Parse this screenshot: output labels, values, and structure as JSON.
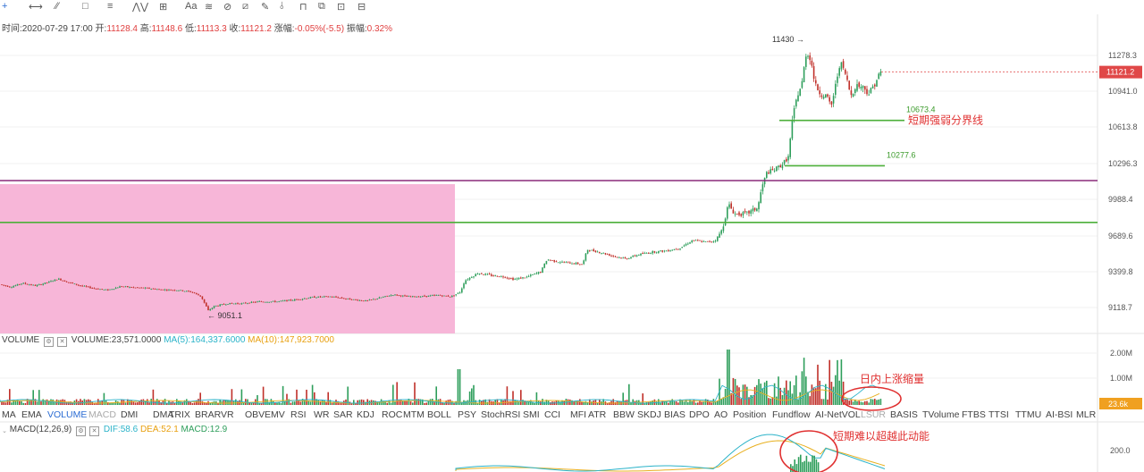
{
  "toolbar": {
    "tools": [
      {
        "icon": "crosshair-icon",
        "glyph": "+"
      },
      {
        "icon": "horizontal-line-icon",
        "glyph": "⟷"
      },
      {
        "icon": "trend-line-icon",
        "glyph": "⁄⁄"
      },
      {
        "icon": "rectangle-icon",
        "glyph": "□"
      },
      {
        "icon": "parallel-lines-icon",
        "glyph": "≡"
      },
      {
        "icon": "wave-icon",
        "glyph": "⋀⋁"
      },
      {
        "icon": "measure-icon",
        "glyph": "⊞"
      },
      {
        "icon": "text-icon",
        "glyph": "Aa"
      },
      {
        "icon": "fibonacci-icon",
        "glyph": "≋"
      },
      {
        "icon": "pattern-icon",
        "glyph": "⊘"
      },
      {
        "icon": "ruler-icon",
        "glyph": "⧄"
      },
      {
        "icon": "pencil-icon",
        "glyph": "✎"
      },
      {
        "icon": "magnet-icon",
        "glyph": "⫰"
      },
      {
        "icon": "lock-icon",
        "glyph": "⊓"
      },
      {
        "icon": "copy-icon",
        "glyph": "⧉"
      },
      {
        "icon": "edit-layer-icon",
        "glyph": "⊡"
      },
      {
        "icon": "trash-icon",
        "glyph": "⊟"
      }
    ]
  },
  "ohlc": {
    "time_label": "时间:",
    "time": "2020-07-29 17:00",
    "open_label": "开:",
    "open": "11128.4",
    "high_label": "高:",
    "high": "11148.6",
    "low_label": "低:",
    "low": "11113.3",
    "close_label": "收:",
    "close": "11121.2",
    "change_label": "涨幅:",
    "change": "-0.05%(-5.5)",
    "amp_label": "振幅:",
    "amp": "0.32%"
  },
  "volume_header": {
    "name": "VOLUME",
    "value_text": "VOLUME:23,571.0000",
    "ma5_text": "MA(5):164,337.6000",
    "ma10_text": "MA(10):147,923.7000"
  },
  "macd_header": {
    "name": "MACD(12,26,9)",
    "dif_text": "DIF:58.6",
    "dea_text": "DEA:52.1",
    "macd_text": "MACD:12.9"
  },
  "indicator_tabs": [
    {
      "label": "MA",
      "state": "normal"
    },
    {
      "label": "EMA",
      "state": "normal"
    },
    {
      "label": "VOLUME",
      "state": "active"
    },
    {
      "label": "MACD",
      "state": "dim"
    },
    {
      "label": "DMI",
      "state": "normal"
    },
    {
      "label": "DMA",
      "state": "normal"
    },
    {
      "label": "TRIX",
      "state": "normal"
    },
    {
      "label": "BRAR",
      "state": "normal"
    },
    {
      "label": "VR",
      "state": "normal"
    },
    {
      "label": "OBV",
      "state": "normal"
    },
    {
      "label": "EMV",
      "state": "normal"
    },
    {
      "label": "RSI",
      "state": "normal"
    },
    {
      "label": "WR",
      "state": "normal"
    },
    {
      "label": "SAR",
      "state": "normal"
    },
    {
      "label": "KDJ",
      "state": "normal"
    },
    {
      "label": "ROC",
      "state": "normal"
    },
    {
      "label": "MTM",
      "state": "normal"
    },
    {
      "label": "BOLL",
      "state": "normal"
    },
    {
      "label": "PSY",
      "state": "normal"
    },
    {
      "label": "StochRSI",
      "state": "normal"
    },
    {
      "label": "SMI",
      "state": "normal"
    },
    {
      "label": "CCI",
      "state": "normal"
    },
    {
      "label": "MFI",
      "state": "normal"
    },
    {
      "label": "ATR",
      "state": "normal"
    },
    {
      "label": "BBW",
      "state": "normal"
    },
    {
      "label": "SKDJ",
      "state": "normal"
    },
    {
      "label": "BIAS",
      "state": "normal"
    },
    {
      "label": "DPO",
      "state": "normal"
    },
    {
      "label": "AO",
      "state": "normal"
    },
    {
      "label": "Position",
      "state": "normal"
    },
    {
      "label": "Fundflow",
      "state": "normal"
    },
    {
      "label": "AI-NetVOL",
      "state": "normal"
    },
    {
      "label": "LSUR",
      "state": "dim"
    },
    {
      "label": "BASIS",
      "state": "normal"
    },
    {
      "label": "TVolume",
      "state": "normal"
    },
    {
      "label": "FTBS",
      "state": "normal"
    },
    {
      "label": "TTSI",
      "state": "normal"
    },
    {
      "label": "TTMU",
      "state": "normal"
    },
    {
      "label": "AI-BSI",
      "state": "normal"
    },
    {
      "label": "MLR",
      "state": "normal"
    }
  ],
  "colors": {
    "up": "#2e9e5b",
    "down": "#c0302a",
    "highlight_zone": "#f7b6d8",
    "resistance_line": "#8a2a7a",
    "support_line": "#4caf3a",
    "annotation": "#e03030",
    "ma5": "#2bb3c9",
    "ma10": "#e8b020",
    "price_tag": "#e04848"
  },
  "chart_data": {
    "type": "candlestick",
    "price_axis": {
      "ticks": [
        "11278.3",
        "10941.0",
        "10613.8",
        "10296.3",
        "9988.4",
        "9689.6",
        "9399.8",
        "9118.7"
      ],
      "ylim": [
        8960,
        11500
      ],
      "current_price": "11121.2"
    },
    "key_points": [
      {
        "label": "11430",
        "value": 11430,
        "kind": "high"
      },
      {
        "label": "9051.1",
        "value": 9051.1,
        "kind": "low"
      }
    ],
    "levels": [
      {
        "label": "10673.4",
        "value": 10673.4,
        "note": "短期强弱分界线"
      },
      {
        "label": "10277.6",
        "value": 10277.6,
        "note": ""
      }
    ],
    "horizontal_lines": [
      {
        "value": 10150,
        "color_key": "resistance_line"
      },
      {
        "value": 9800,
        "color_key": "support_line"
      }
    ],
    "close_path": [
      [
        0,
        9300
      ],
      [
        12,
        9280
      ],
      [
        25,
        9310
      ],
      [
        40,
        9290
      ],
      [
        55,
        9320
      ],
      [
        65,
        9345
      ],
      [
        75,
        9320
      ],
      [
        90,
        9290
      ],
      [
        105,
        9270
      ],
      [
        120,
        9255
      ],
      [
        135,
        9285
      ],
      [
        150,
        9275
      ],
      [
        165,
        9270
      ],
      [
        180,
        9260
      ],
      [
        200,
        9255
      ],
      [
        215,
        9240
      ],
      [
        225,
        9205
      ],
      [
        233,
        9095
      ],
      [
        240,
        9130
      ],
      [
        255,
        9150
      ],
      [
        270,
        9150
      ],
      [
        290,
        9165
      ],
      [
        310,
        9165
      ],
      [
        330,
        9180
      ],
      [
        350,
        9200
      ],
      [
        370,
        9205
      ],
      [
        390,
        9185
      ],
      [
        410,
        9170
      ],
      [
        425,
        9195
      ],
      [
        440,
        9220
      ],
      [
        455,
        9205
      ],
      [
        470,
        9205
      ],
      [
        490,
        9215
      ],
      [
        505,
        9205
      ],
      [
        515,
        9240
      ],
      [
        520,
        9330
      ],
      [
        535,
        9390
      ],
      [
        550,
        9370
      ],
      [
        565,
        9360
      ],
      [
        575,
        9340
      ],
      [
        590,
        9360
      ],
      [
        605,
        9400
      ],
      [
        612,
        9500
      ],
      [
        625,
        9480
      ],
      [
        640,
        9470
      ],
      [
        652,
        9460
      ],
      [
        657,
        9580
      ],
      [
        670,
        9560
      ],
      [
        685,
        9530
      ],
      [
        700,
        9505
      ],
      [
        715,
        9540
      ],
      [
        730,
        9560
      ],
      [
        745,
        9570
      ],
      [
        760,
        9590
      ],
      [
        775,
        9655
      ],
      [
        790,
        9640
      ],
      [
        800,
        9650
      ],
      [
        808,
        9740
      ],
      [
        815,
        9950
      ],
      [
        822,
        9870
      ],
      [
        835,
        9870
      ],
      [
        848,
        9920
      ],
      [
        852,
        10080
      ],
      [
        858,
        10220
      ],
      [
        866,
        10240
      ],
      [
        875,
        10290
      ],
      [
        882,
        10350
      ],
      [
        887,
        10700
      ],
      [
        892,
        10900
      ],
      [
        897,
        11000
      ],
      [
        902,
        11300
      ],
      [
        907,
        11250
      ],
      [
        912,
        11000
      ],
      [
        918,
        10920
      ],
      [
        924,
        10900
      ],
      [
        930,
        10800
      ],
      [
        935,
        11000
      ],
      [
        940,
        11220
      ],
      [
        946,
        11100
      ],
      [
        952,
        10900
      ],
      [
        958,
        11000
      ],
      [
        966,
        10980
      ],
      [
        972,
        10920
      ],
      [
        978,
        11000
      ],
      [
        985,
        11120
      ]
    ],
    "volume": {
      "axis_ticks": [
        "2.00M",
        "1.00M"
      ],
      "ylim": [
        0,
        2300000
      ],
      "current_label": "23.6k"
    },
    "macd": {
      "axis_ticks": [
        "200.0"
      ],
      "ylim": [
        -200,
        360
      ]
    }
  },
  "annotations": {
    "volume_note": "日内上涨缩量",
    "macd_note": "短期难以超越此动能"
  }
}
